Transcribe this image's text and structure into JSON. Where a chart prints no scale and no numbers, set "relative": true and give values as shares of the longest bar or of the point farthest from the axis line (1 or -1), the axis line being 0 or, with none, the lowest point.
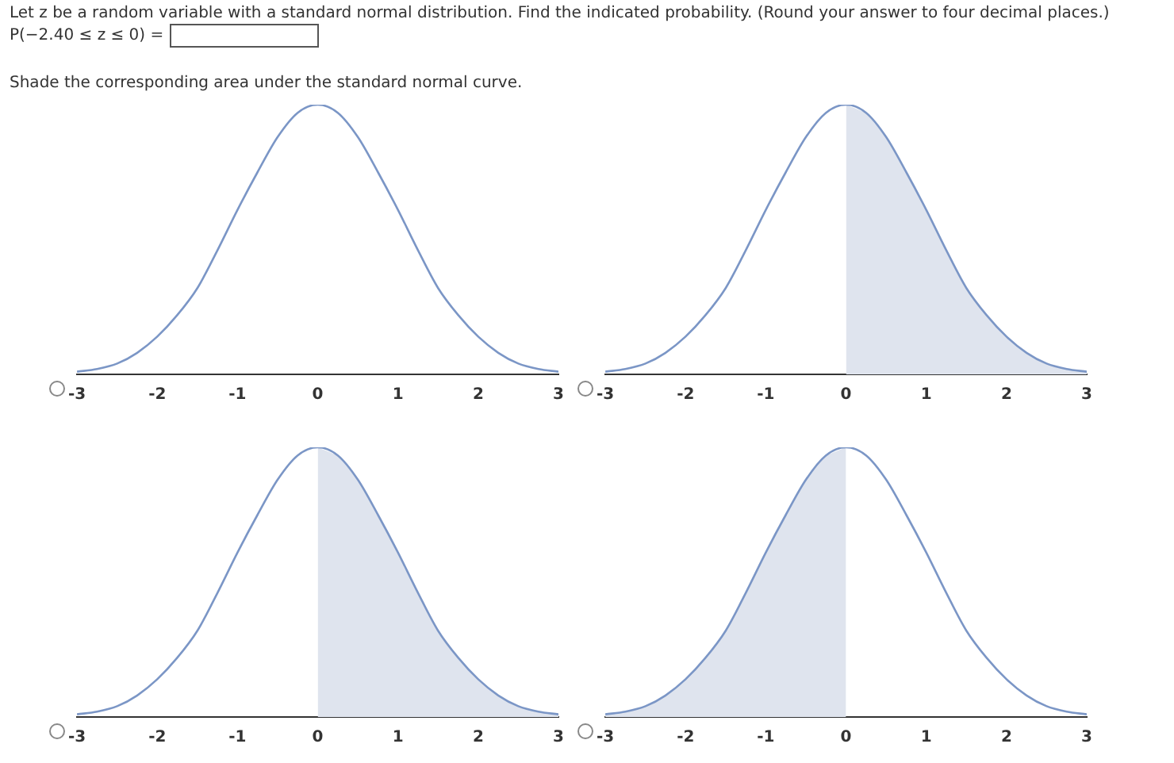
{
  "chart_data": [
    {
      "type": "other",
      "title": "Let z be a random variable with a standard normal distribution. Find the indicated probability. (Round your answer to four decimal places.)",
      "annotations": [
        "P(−2.40 ≤ z ≤ 0) =",
        "Shade the corresponding area under the standard normal curve."
      ]
    },
    {
      "type": "line",
      "relative": true,
      "marker": "none",
      "xlim": [
        -3,
        3
      ],
      "xticks": [
        -3,
        -2,
        -1,
        0,
        1,
        2,
        3
      ],
      "x": [
        -3,
        -2.75,
        -2.5,
        -2.25,
        -2,
        -1.75,
        -1.5,
        -1.25,
        -1,
        -0.75,
        -0.5,
        -0.25,
        0,
        0.25,
        0.5,
        0.75,
        1,
        1.25,
        1.5,
        1.75,
        2,
        2.25,
        2.5,
        2.75,
        3
      ],
      "series": [
        {
          "type": "line",
          "color": "#7b96c6",
          "values": [
            0.01,
            0.02,
            0.04,
            0.08,
            0.14,
            0.22,
            0.32,
            0.46,
            0.61,
            0.75,
            0.88,
            0.97,
            1,
            0.97,
            0.88,
            0.75,
            0.61,
            0.46,
            0.32,
            0.22,
            0.14,
            0.08,
            0.04,
            0.02,
            0.01
          ]
        }
      ]
    },
    {
      "type": "line",
      "relative": true,
      "marker": "none",
      "xlim": [
        -3,
        3
      ],
      "xticks": [
        -3,
        -2,
        -1,
        0,
        1,
        2,
        3
      ],
      "x": [
        -3,
        -2.75,
        -2.5,
        -2.25,
        -2,
        -1.75,
        -1.5,
        -1.25,
        -1,
        -0.75,
        -0.5,
        -0.25,
        0,
        0.25,
        0.5,
        0.75,
        1,
        1.25,
        1.5,
        1.75,
        2,
        2.25,
        2.5,
        2.75,
        3
      ],
      "series": [
        {
          "type": "area",
          "color": "#dfe4ee",
          "x": [
            0,
            0.25,
            0.5,
            0.75,
            1,
            1.25,
            1.5,
            1.75,
            2,
            2.25,
            2.5,
            2.75,
            3
          ],
          "values": [
            1,
            0.97,
            0.88,
            0.75,
            0.61,
            0.46,
            0.32,
            0.22,
            0.14,
            0.08,
            0.04,
            0.02,
            0.01
          ]
        },
        {
          "type": "line",
          "color": "#7b96c6",
          "values": [
            0.01,
            0.02,
            0.04,
            0.08,
            0.14,
            0.22,
            0.32,
            0.46,
            0.61,
            0.75,
            0.88,
            0.97,
            1,
            0.97,
            0.88,
            0.75,
            0.61,
            0.46,
            0.32,
            0.22,
            0.14,
            0.08,
            0.04,
            0.02,
            0.01
          ]
        }
      ]
    },
    {
      "type": "line",
      "relative": true,
      "marker": "none",
      "xlim": [
        -3,
        3
      ],
      "xticks": [
        -3,
        -2,
        -1,
        0,
        1,
        2,
        3
      ],
      "x": [
        -3,
        -2.75,
        -2.5,
        -2.25,
        -2,
        -1.75,
        -1.5,
        -1.25,
        -1,
        -0.75,
        -0.5,
        -0.25,
        0,
        0.25,
        0.5,
        0.75,
        1,
        1.25,
        1.5,
        1.75,
        2,
        2.25,
        2.5,
        2.75,
        3
      ],
      "series": [
        {
          "type": "area",
          "color": "#dfe4ee",
          "x": [
            0,
            0.25,
            0.5,
            0.75,
            1,
            1.25,
            1.5,
            1.75,
            2,
            2.25,
            2.5,
            2.75,
            3
          ],
          "values": [
            1,
            0.97,
            0.88,
            0.75,
            0.61,
            0.46,
            0.32,
            0.22,
            0.14,
            0.08,
            0.04,
            0.02,
            0.01
          ]
        },
        {
          "type": "line",
          "color": "#7b96c6",
          "values": [
            0.01,
            0.02,
            0.04,
            0.08,
            0.14,
            0.22,
            0.32,
            0.46,
            0.61,
            0.75,
            0.88,
            0.97,
            1,
            0.97,
            0.88,
            0.75,
            0.61,
            0.46,
            0.32,
            0.22,
            0.14,
            0.08,
            0.04,
            0.02,
            0.01
          ]
        }
      ]
    },
    {
      "type": "line",
      "relative": true,
      "marker": "none",
      "xlim": [
        -3,
        3
      ],
      "xticks": [
        -3,
        -2,
        -1,
        0,
        1,
        2,
        3
      ],
      "x": [
        -3,
        -2.75,
        -2.5,
        -2.25,
        -2,
        -1.75,
        -1.5,
        -1.25,
        -1,
        -0.75,
        -0.5,
        -0.25,
        0,
        0.25,
        0.5,
        0.75,
        1,
        1.25,
        1.5,
        1.75,
        2,
        2.25,
        2.5,
        2.75,
        3
      ],
      "series": [
        {
          "type": "area",
          "color": "#dfe4ee",
          "x": [
            -3,
            -2.75,
            -2.5,
            -2.25,
            -2,
            -1.75,
            -1.5,
            -1.25,
            -1,
            -0.75,
            -0.5,
            -0.25,
            0
          ],
          "values": [
            0.01,
            0.02,
            0.04,
            0.08,
            0.14,
            0.22,
            0.32,
            0.46,
            0.61,
            0.75,
            0.88,
            0.97,
            1
          ]
        },
        {
          "type": "line",
          "color": "#7b96c6",
          "values": [
            0.01,
            0.02,
            0.04,
            0.08,
            0.14,
            0.22,
            0.32,
            0.46,
            0.61,
            0.75,
            0.88,
            0.97,
            1,
            0.97,
            0.88,
            0.75,
            0.61,
            0.46,
            0.32,
            0.22,
            0.14,
            0.08,
            0.04,
            0.02,
            0.01
          ]
        }
      ]
    }
  ]
}
